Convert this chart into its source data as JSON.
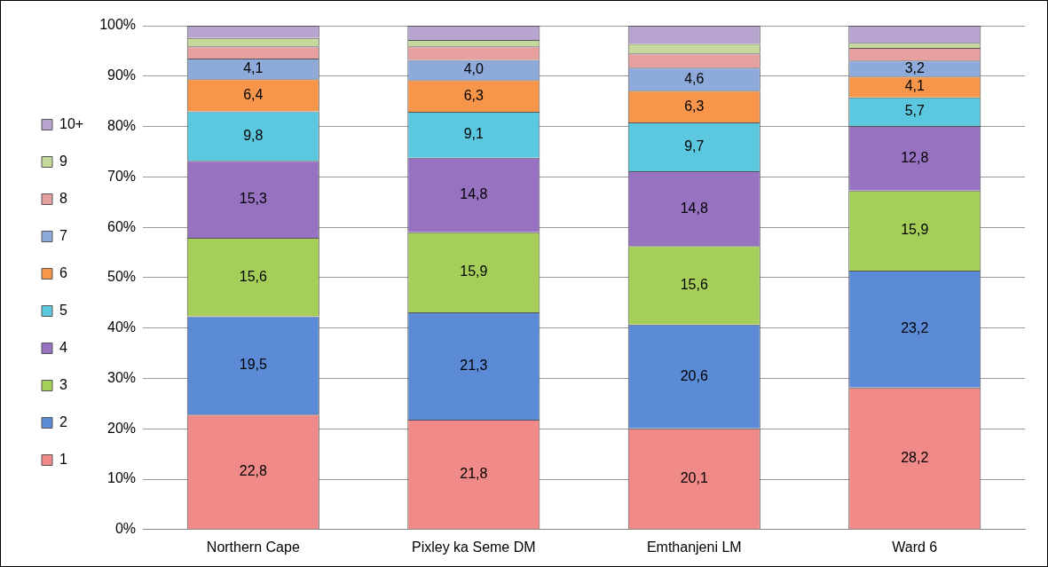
{
  "chart_data": {
    "type": "bar",
    "stacked": true,
    "categories": [
      "Northern Cape",
      "Pixley ka Seme DM",
      "Emthanjeni LM",
      "Ward 6"
    ],
    "ylim": [
      0,
      100
    ],
    "yticks": [
      {
        "value": 0,
        "label": "0%"
      },
      {
        "value": 10,
        "label": "10%"
      },
      {
        "value": 20,
        "label": "20%"
      },
      {
        "value": 30,
        "label": "30%"
      },
      {
        "value": 40,
        "label": "40%"
      },
      {
        "value": 50,
        "label": "50%"
      },
      {
        "value": 60,
        "label": "60%"
      },
      {
        "value": 70,
        "label": "70%"
      },
      {
        "value": 80,
        "label": "80%"
      },
      {
        "value": 90,
        "label": "90%"
      },
      {
        "value": 100,
        "label": "100%"
      }
    ],
    "grid": "y",
    "legend": "left",
    "series": [
      {
        "name": "1",
        "color": "#f08a88",
        "values": [
          22.8,
          21.8,
          20.1,
          28.2
        ],
        "value_labels": [
          "22,8",
          "21,8",
          "20,1",
          "28,2"
        ]
      },
      {
        "name": "2",
        "color": "#5b8bd6",
        "values": [
          19.5,
          21.3,
          20.6,
          23.2
        ],
        "value_labels": [
          "19,5",
          "21,3",
          "20,6",
          "23,2"
        ]
      },
      {
        "name": "3",
        "color": "#a6cf5a",
        "values": [
          15.6,
          15.9,
          15.6,
          15.9
        ],
        "value_labels": [
          "15,6",
          "15,9",
          "15,6",
          "15,9"
        ]
      },
      {
        "name": "4",
        "color": "#9672c0",
        "values": [
          15.3,
          14.8,
          14.8,
          12.8
        ],
        "value_labels": [
          "15,3",
          "14,8",
          "14,8",
          "12,8"
        ]
      },
      {
        "name": "5",
        "color": "#5cc8e0",
        "values": [
          9.8,
          9.1,
          9.7,
          5.7
        ],
        "value_labels": [
          "9,8",
          "9,1",
          "9,7",
          "5,7"
        ]
      },
      {
        "name": "6",
        "color": "#f7964a",
        "values": [
          6.4,
          6.3,
          6.3,
          4.1
        ],
        "value_labels": [
          "6,4",
          "6,3",
          "6,3",
          "4,1"
        ]
      },
      {
        "name": "7",
        "color": "#8eaadb",
        "values": [
          4.1,
          4.0,
          4.6,
          3.2
        ],
        "value_labels": [
          "4,1",
          "4,0",
          "4,6",
          "3,2"
        ]
      },
      {
        "name": "8",
        "color": "#e6a0a0",
        "values": [
          2.4,
          2.7,
          2.8,
          2.5
        ]
      },
      {
        "name": "9",
        "color": "#c4d99b",
        "values": [
          1.7,
          1.3,
          1.9,
          1.0
        ]
      },
      {
        "name": "10+",
        "color": "#b7a5d0",
        "values": [
          2.4,
          2.8,
          3.6,
          3.4
        ]
      }
    ]
  }
}
